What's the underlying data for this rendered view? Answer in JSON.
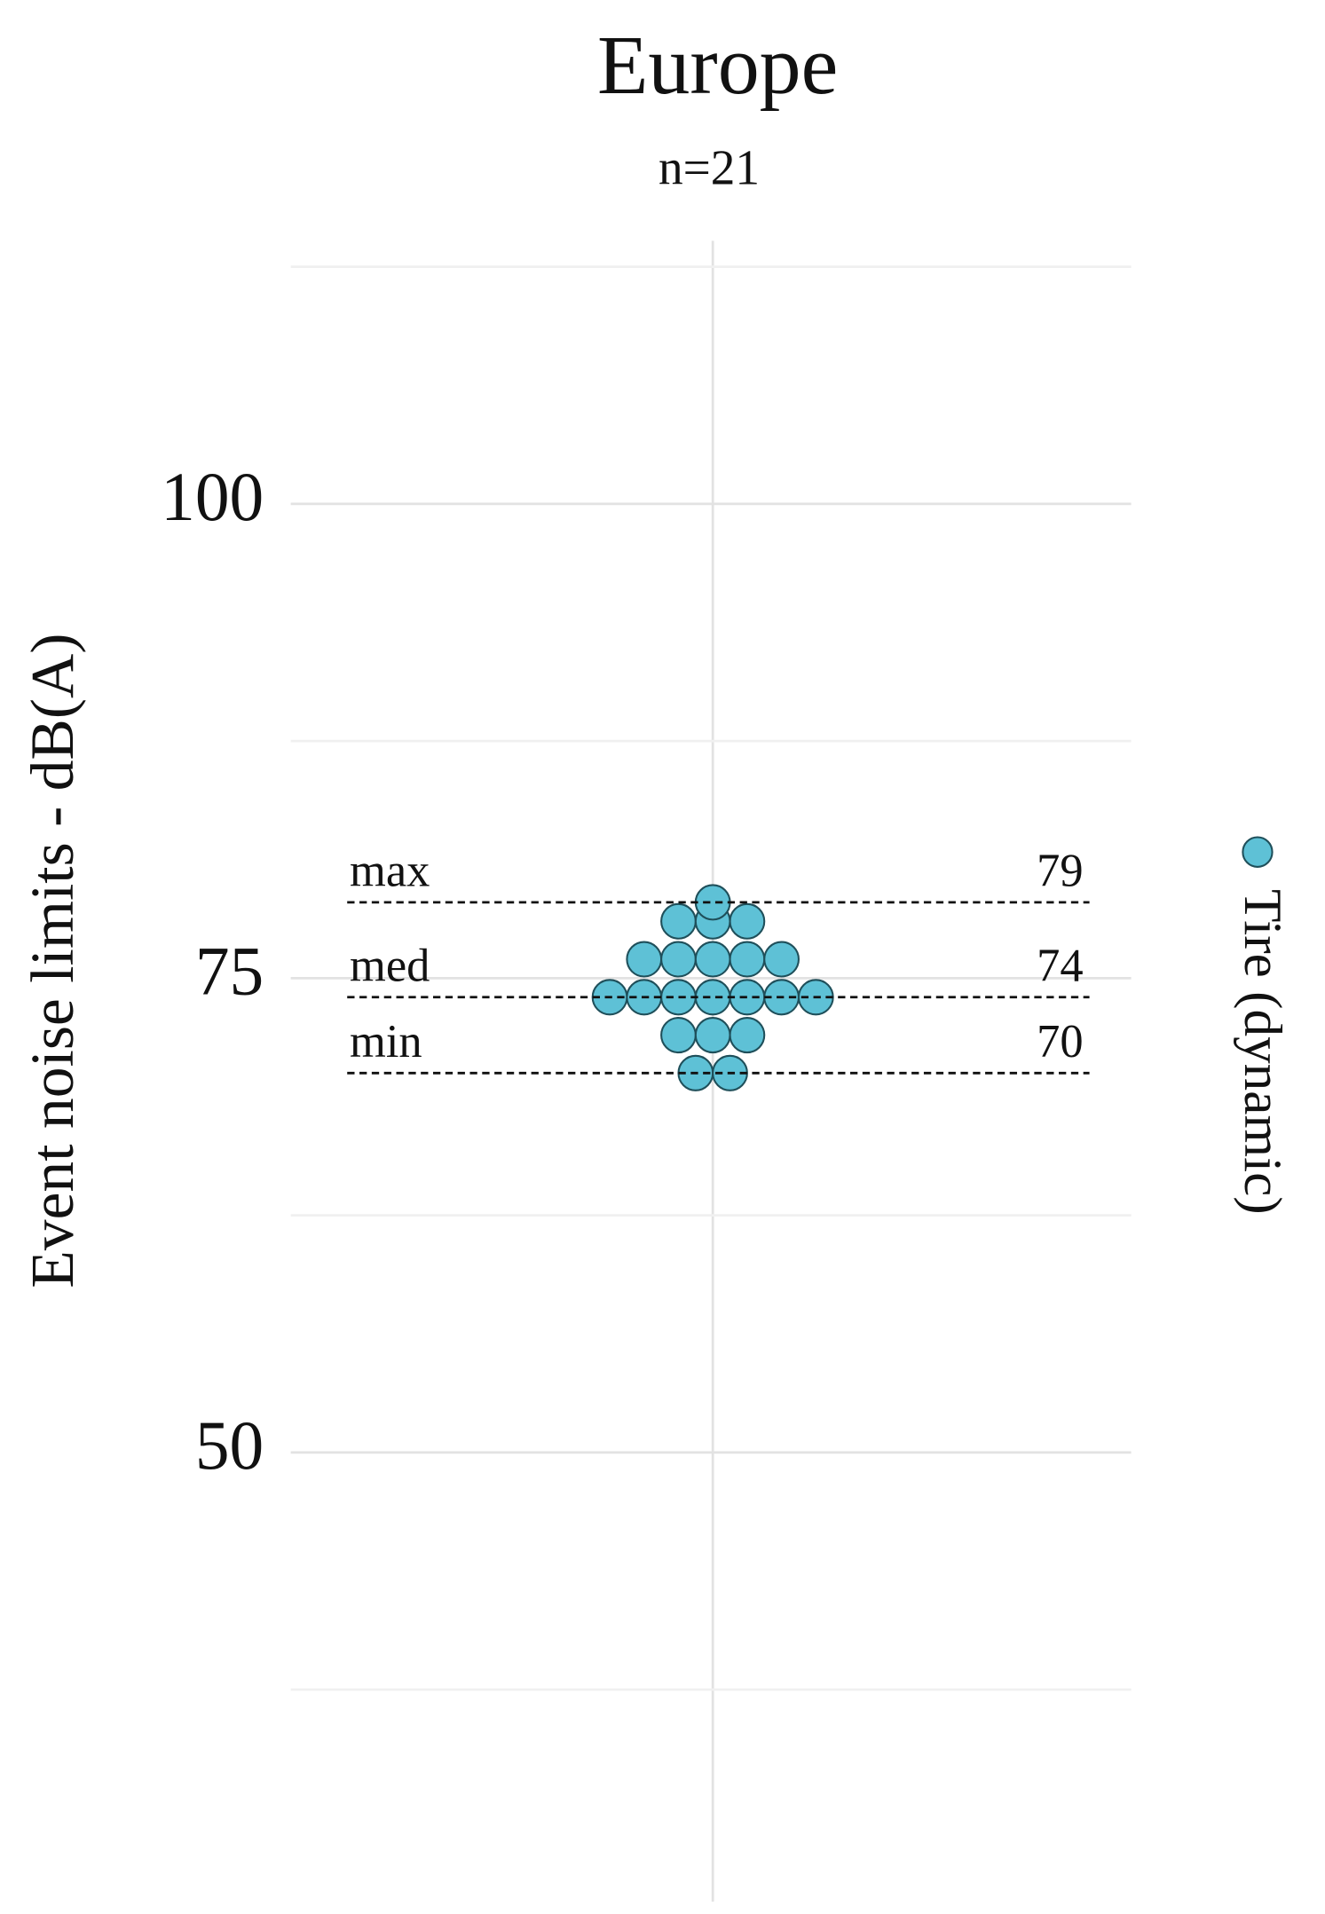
{
  "chart_data": {
    "type": "dotplot",
    "title": "Europe",
    "subtitle": "n=21",
    "y_label": "Event noise limits - dB(A)",
    "ylim": [
      26,
      114
    ],
    "yticks": [
      50,
      75,
      100
    ],
    "minor_yticks": [
      37.5,
      62.5,
      87.5,
      112.5
    ],
    "grid": true,
    "legend_position": "right",
    "series": [
      {
        "name": "Tire (dynamic)",
        "color": "#5ec1d6",
        "edge_color": "#1f4f5a",
        "values": [
          79,
          78,
          78,
          78,
          76,
          76,
          76,
          76,
          76,
          74,
          74,
          74,
          74,
          74,
          74,
          74,
          72,
          72,
          72,
          70,
          70
        ]
      }
    ],
    "reference_lines": [
      {
        "label": "max",
        "value": 79
      },
      {
        "label": "med",
        "value": 74
      },
      {
        "label": "min",
        "value": 70
      }
    ]
  }
}
